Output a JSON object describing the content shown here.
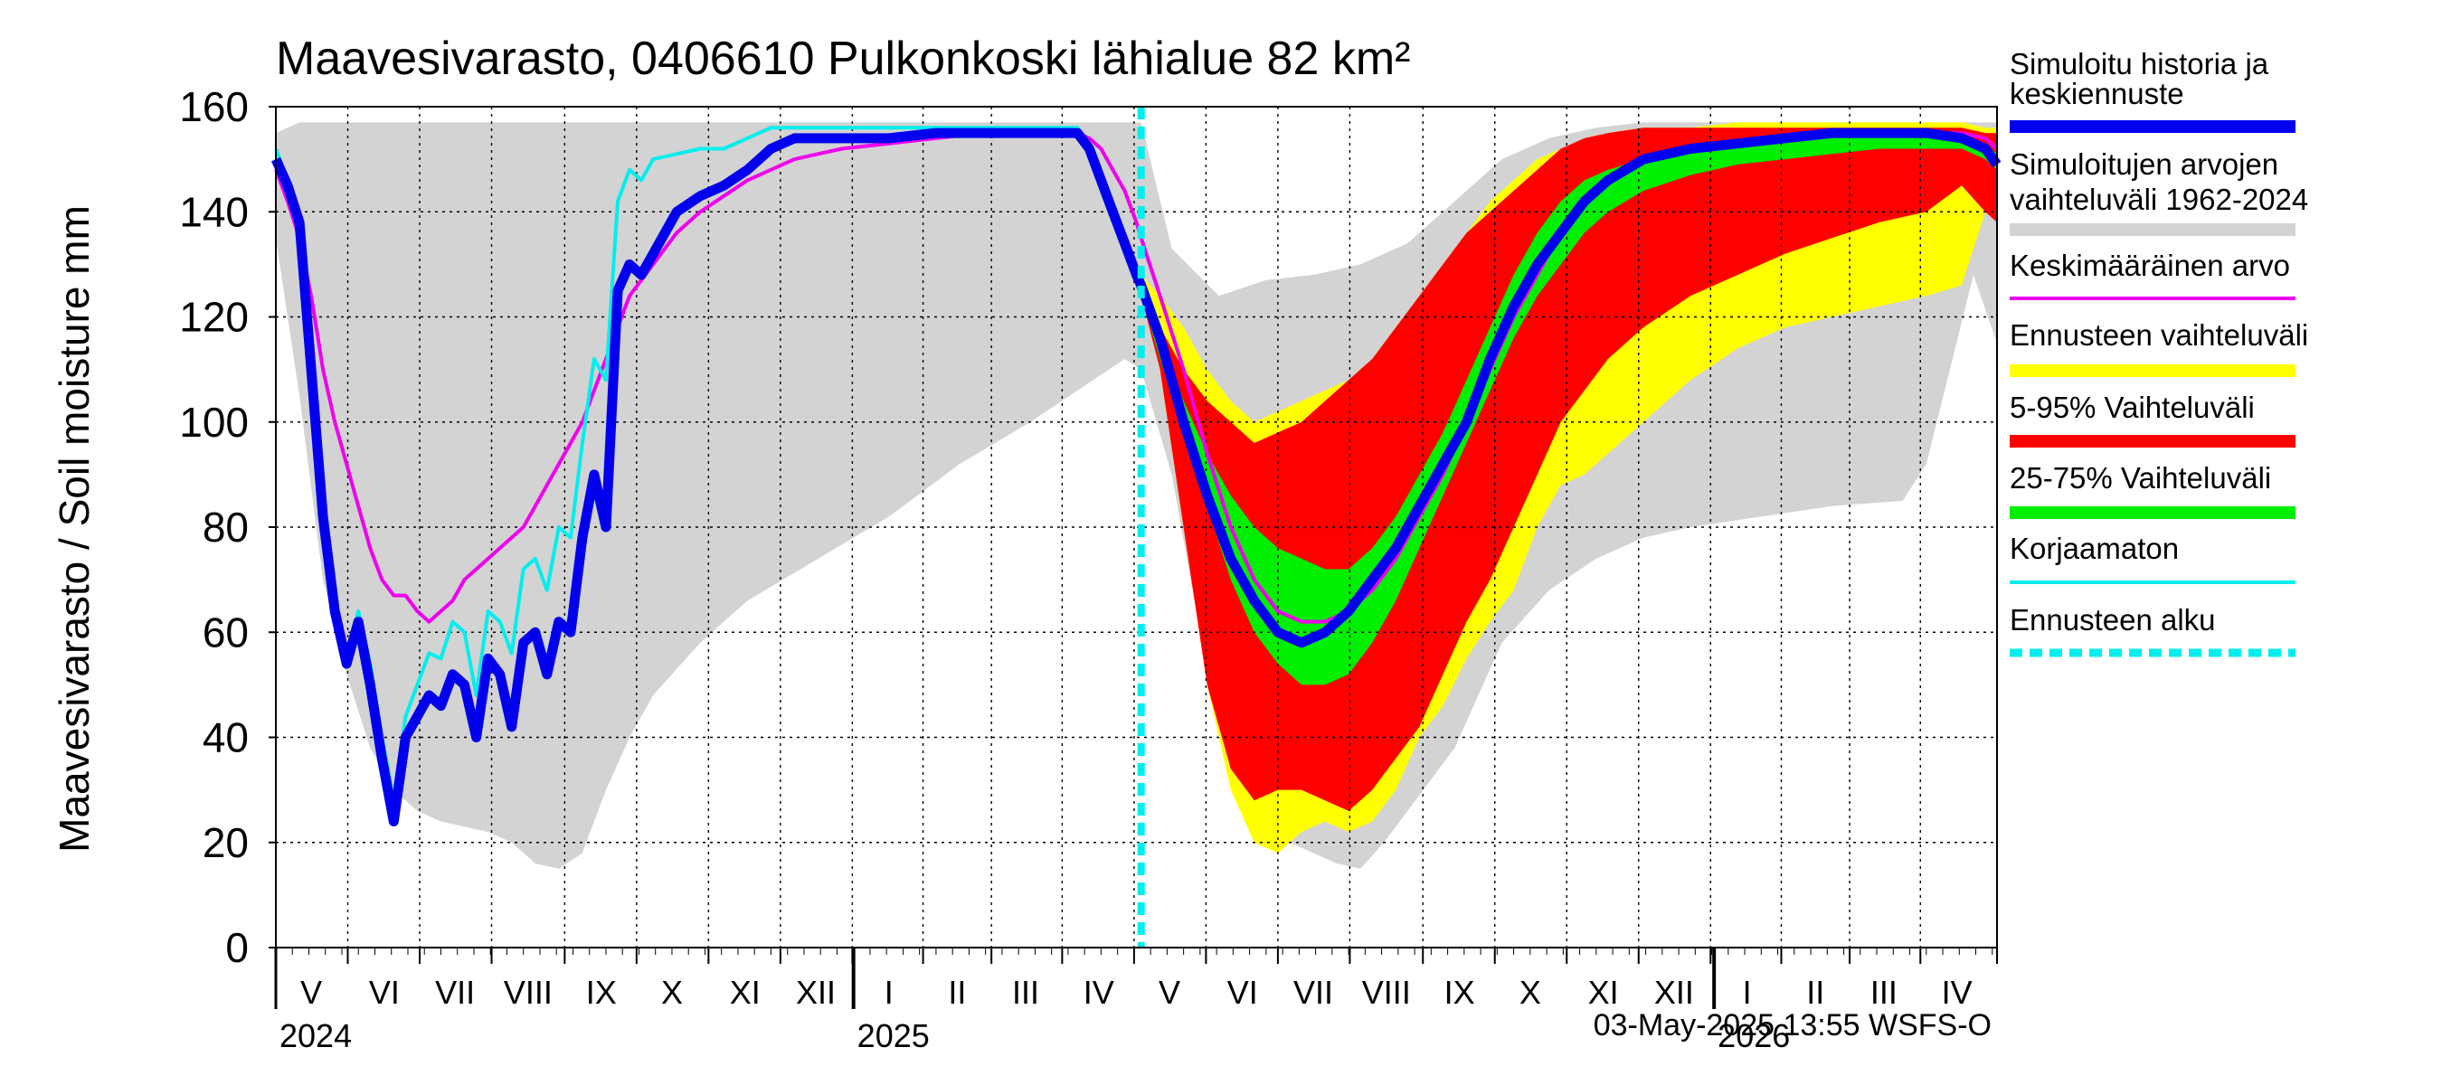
{
  "chart_data": {
    "type": "area",
    "title": "Maavesivarasto, 0406610 Pulkonkoski lähialue 82 km²",
    "ylabel": "Maavesivarasto / Soil moisture   mm",
    "ylim": [
      0,
      160
    ],
    "yticks": [
      "0",
      "20",
      "40",
      "60",
      "80",
      "100",
      "120",
      "140",
      "160"
    ],
    "xlim_days": [
      0,
      730
    ],
    "month_labels": [
      {
        "label": "V",
        "day": 15
      },
      {
        "label": "VI",
        "day": 46
      },
      {
        "label": "VII",
        "day": 76
      },
      {
        "label": "VIII",
        "day": 107
      },
      {
        "label": "IX",
        "day": 138
      },
      {
        "label": "X",
        "day": 168
      },
      {
        "label": "XI",
        "day": 199
      },
      {
        "label": "XII",
        "day": 229
      },
      {
        "label": "I",
        "day": 260
      },
      {
        "label": "II",
        "day": 289
      },
      {
        "label": "III",
        "day": 318
      },
      {
        "label": "IV",
        "day": 349
      },
      {
        "label": "V",
        "day": 379
      },
      {
        "label": "VI",
        "day": 410
      },
      {
        "label": "VII",
        "day": 440
      },
      {
        "label": "VIII",
        "day": 471
      },
      {
        "label": "IX",
        "day": 502
      },
      {
        "label": "X",
        "day": 532
      },
      {
        "label": "XI",
        "day": 563
      },
      {
        "label": "XII",
        "day": 593
      },
      {
        "label": "I",
        "day": 624
      },
      {
        "label": "II",
        "day": 653
      },
      {
        "label": "III",
        "day": 682
      },
      {
        "label": "IV",
        "day": 713
      }
    ],
    "year_labels": [
      {
        "label": "2024",
        "day": 0
      },
      {
        "label": "2025",
        "day": 245
      },
      {
        "label": "2026",
        "day": 610
      }
    ],
    "year_boundaries_days": [
      245,
      610
    ],
    "forecast_start_day": 367,
    "legend": [
      {
        "label": "Simuloitu historia ja keskiennuste",
        "color": "#0000ee",
        "style": "thick"
      },
      {
        "label": "Simuloitujen arvojen vaihteluväli 1962-2024",
        "color": "#cccccc",
        "style": "thick"
      },
      {
        "label": "Keskimääräinen arvo",
        "color": "#ee00ee",
        "style": "line"
      },
      {
        "label": "Ennusteen vaihteluväli",
        "color": "#ffff00",
        "style": "thick"
      },
      {
        "label": "5-95% Vaihteluväli",
        "color": "#ff0000",
        "style": "thick"
      },
      {
        "label": "25-75% Vaihteluväli",
        "color": "#00ee00",
        "style": "thick"
      },
      {
        "label": "Korjaamaton",
        "color": "#00eeee",
        "style": "line"
      },
      {
        "label": "Ennusteen alku",
        "color": "#00eeee",
        "style": "dashed"
      }
    ],
    "series": [
      {
        "name": "Simuloitujen arvojen vaihteluväli 1962-2024 (max)",
        "color": "#cccccc",
        "x": [
          0,
          10,
          20,
          40,
          60,
          80,
          100,
          110,
          130,
          150,
          170,
          200,
          230,
          260,
          290,
          320,
          345,
          360,
          367,
          380,
          400,
          420,
          440,
          460,
          480,
          500,
          520,
          540,
          560,
          580,
          600,
          630,
          660,
          690,
          720,
          730
        ],
        "values": [
          155,
          157,
          157,
          157,
          157,
          157,
          157,
          157,
          157,
          157,
          157,
          157,
          157,
          157,
          157,
          157,
          157,
          157,
          157,
          133,
          124,
          127,
          128,
          130,
          134,
          142,
          150,
          154,
          156,
          157,
          157,
          157,
          157,
          157,
          157,
          157
        ]
      },
      {
        "name": "Simuloitujen arvojen vaihteluväli 1962-2024 (min)",
        "color": "#cccccc",
        "x": [
          0,
          10,
          20,
          30,
          40,
          50,
          60,
          70,
          80,
          90,
          100,
          110,
          120,
          130,
          140,
          150,
          160,
          180,
          200,
          230,
          260,
          290,
          320,
          340,
          360,
          367,
          380,
          390,
          400,
          410,
          420,
          440,
          450,
          460,
          470,
          480,
          490,
          500,
          510,
          520,
          540,
          560,
          580,
          600,
          630,
          660,
          690,
          700,
          710,
          720,
          730
        ],
        "values": [
          135,
          105,
          70,
          52,
          38,
          30,
          26,
          24,
          23,
          22,
          20,
          16,
          15,
          18,
          30,
          40,
          48,
          58,
          66,
          74,
          82,
          92,
          100,
          106,
          112,
          110,
          90,
          65,
          45,
          30,
          22,
          18,
          16,
          15,
          20,
          26,
          32,
          38,
          48,
          58,
          68,
          74,
          78,
          80,
          82,
          84,
          85,
          92,
          110,
          128,
          115
        ]
      },
      {
        "name": "Ennusteen vaihteluväli (max)",
        "color": "#ffff00",
        "x": [
          367,
          375,
          385,
          395,
          405,
          415,
          425,
          435,
          445,
          455,
          465,
          475,
          485,
          495,
          505,
          515,
          525,
          535,
          545,
          555,
          565,
          580,
          600,
          620,
          640,
          660,
          680,
          700,
          715,
          725,
          730
        ],
        "values": [
          128,
          124,
          118,
          110,
          104,
          100,
          102,
          104,
          106,
          108,
          112,
          118,
          124,
          130,
          136,
          142,
          146,
          150,
          152,
          154,
          155,
          156,
          156,
          157,
          157,
          157,
          157,
          157,
          157,
          156,
          156
        ]
      },
      {
        "name": "Ennusteen vaihteluväli (min)",
        "color": "#ffff00",
        "x": [
          367,
          375,
          385,
          395,
          405,
          415,
          425,
          435,
          445,
          455,
          465,
          475,
          485,
          495,
          505,
          515,
          525,
          535,
          545,
          555,
          565,
          580,
          600,
          620,
          640,
          660,
          680,
          700,
          715,
          725,
          730
        ],
        "values": [
          126,
          110,
          80,
          50,
          30,
          20,
          18,
          22,
          24,
          22,
          24,
          30,
          40,
          46,
          55,
          62,
          68,
          80,
          88,
          90,
          94,
          100,
          108,
          114,
          118,
          120,
          122,
          124,
          126,
          140,
          138
        ]
      },
      {
        "name": "5-95% Vaihteluväli (max)",
        "color": "#ff0000",
        "x": [
          367,
          375,
          385,
          395,
          405,
          415,
          425,
          435,
          445,
          455,
          465,
          475,
          485,
          495,
          505,
          515,
          525,
          535,
          545,
          555,
          565,
          580,
          600,
          620,
          640,
          660,
          680,
          700,
          715,
          725,
          730
        ],
        "values": [
          127,
          118,
          110,
          104,
          100,
          96,
          98,
          100,
          104,
          108,
          112,
          118,
          124,
          130,
          136,
          140,
          144,
          148,
          152,
          154,
          155,
          156,
          156,
          156,
          156,
          156,
          156,
          156,
          156,
          155,
          155
        ]
      },
      {
        "name": "5-95% Vaihteluväli (min)",
        "color": "#ff0000",
        "x": [
          367,
          375,
          385,
          395,
          405,
          415,
          425,
          435,
          445,
          455,
          465,
          475,
          485,
          495,
          505,
          515,
          525,
          535,
          545,
          555,
          565,
          580,
          600,
          620,
          640,
          660,
          680,
          700,
          715,
          725,
          730
        ],
        "values": [
          124,
          110,
          80,
          50,
          34,
          28,
          30,
          30,
          28,
          26,
          30,
          36,
          42,
          52,
          62,
          70,
          80,
          90,
          100,
          106,
          112,
          118,
          124,
          128,
          132,
          135,
          138,
          140,
          145,
          140,
          138
        ]
      },
      {
        "name": "25-75% Vaihteluväli (max)",
        "color": "#00ee00",
        "x": [
          367,
          375,
          385,
          395,
          405,
          415,
          425,
          435,
          445,
          455,
          465,
          475,
          485,
          495,
          505,
          515,
          525,
          535,
          545,
          555,
          565,
          580,
          600,
          620,
          640,
          660,
          680,
          700,
          715,
          725,
          730
        ],
        "values": [
          126,
          116,
          104,
          94,
          86,
          80,
          76,
          74,
          72,
          72,
          76,
          82,
          90,
          98,
          108,
          118,
          128,
          136,
          142,
          146,
          148,
          150,
          152,
          153,
          154,
          155,
          155,
          155,
          155,
          153,
          151
        ]
      },
      {
        "name": "25-75% Vaihteluväli (min)",
        "color": "#00ee00",
        "x": [
          367,
          375,
          385,
          395,
          405,
          415,
          425,
          435,
          445,
          455,
          465,
          475,
          485,
          495,
          505,
          515,
          525,
          535,
          545,
          555,
          565,
          580,
          600,
          620,
          640,
          660,
          680,
          700,
          715,
          725,
          730
        ],
        "values": [
          124,
          112,
          98,
          84,
          70,
          60,
          54,
          50,
          50,
          52,
          58,
          66,
          76,
          86,
          96,
          106,
          116,
          124,
          130,
          136,
          140,
          144,
          147,
          149,
          150,
          151,
          152,
          152,
          152,
          150,
          148
        ]
      },
      {
        "name": "Simuloitu historia ja keskiennuste",
        "color": "#0000ee",
        "x": [
          0,
          5,
          10,
          15,
          20,
          25,
          30,
          35,
          40,
          45,
          50,
          55,
          60,
          65,
          70,
          75,
          80,
          85,
          90,
          95,
          100,
          105,
          110,
          115,
          120,
          125,
          130,
          135,
          140,
          145,
          150,
          155,
          160,
          170,
          180,
          190,
          200,
          210,
          220,
          230,
          240,
          250,
          260,
          280,
          300,
          320,
          330,
          340,
          345,
          350,
          355,
          360,
          365,
          367,
          375,
          385,
          395,
          405,
          415,
          425,
          435,
          445,
          455,
          465,
          475,
          485,
          495,
          505,
          515,
          525,
          535,
          545,
          555,
          565,
          580,
          600,
          620,
          640,
          660,
          680,
          700,
          715,
          725,
          730
        ],
        "values": [
          150,
          145,
          138,
          110,
          82,
          64,
          54,
          62,
          50,
          36,
          24,
          40,
          44,
          48,
          46,
          52,
          50,
          40,
          55,
          52,
          42,
          58,
          60,
          52,
          62,
          60,
          78,
          90,
          80,
          125,
          130,
          128,
          132,
          140,
          143,
          145,
          148,
          152,
          154,
          154,
          154,
          154,
          154,
          155,
          155,
          155,
          155,
          155,
          152,
          146,
          140,
          134,
          128,
          126,
          116,
          100,
          86,
          74,
          66,
          60,
          58,
          60,
          64,
          70,
          76,
          84,
          92,
          100,
          112,
          122,
          130,
          136,
          142,
          146,
          150,
          152,
          153,
          154,
          155,
          155,
          155,
          154,
          152,
          149
        ]
      },
      {
        "name": "Keskimääräinen arvo",
        "color": "#ee00ee",
        "x": [
          0,
          5,
          10,
          15,
          20,
          25,
          30,
          35,
          40,
          45,
          50,
          55,
          60,
          65,
          70,
          75,
          80,
          85,
          90,
          95,
          100,
          105,
          110,
          115,
          120,
          125,
          130,
          135,
          140,
          145,
          150,
          160,
          170,
          180,
          200,
          220,
          240,
          260,
          280,
          300,
          320,
          330,
          340,
          345,
          350,
          355,
          360,
          365,
          367,
          375,
          385,
          395,
          405,
          415,
          425,
          435,
          445,
          455,
          465,
          475,
          485,
          495,
          505,
          515,
          525,
          535,
          545,
          555,
          565,
          580,
          600,
          620,
          640,
          660,
          680,
          700,
          715,
          725,
          730
        ],
        "values": [
          148,
          142,
          135,
          124,
          110,
          100,
          92,
          84,
          76,
          70,
          67,
          67,
          64,
          62,
          64,
          66,
          70,
          72,
          74,
          76,
          78,
          80,
          84,
          88,
          92,
          96,
          100,
          106,
          112,
          118,
          124,
          130,
          136,
          140,
          146,
          150,
          152,
          153,
          154,
          155,
          155,
          155,
          155,
          154,
          152,
          148,
          144,
          138,
          135,
          124,
          110,
          94,
          80,
          70,
          64,
          62,
          62,
          64,
          68,
          74,
          82,
          90,
          100,
          110,
          120,
          128,
          136,
          142,
          146,
          150,
          152,
          153,
          154,
          155,
          155,
          155,
          155,
          154,
          152
        ]
      },
      {
        "name": "Korjaamaton",
        "color": "#00eeee",
        "x": [
          0,
          5,
          10,
          15,
          20,
          25,
          30,
          35,
          40,
          45,
          50,
          55,
          60,
          65,
          70,
          75,
          80,
          85,
          90,
          95,
          100,
          105,
          110,
          115,
          120,
          125,
          130,
          135,
          140,
          145,
          150,
          155,
          160,
          170,
          180,
          190,
          200,
          210,
          220,
          240,
          260,
          280,
          300,
          320,
          330,
          340,
          345,
          350,
          355,
          360,
          365,
          367
        ],
        "values": [
          152,
          146,
          140,
          112,
          84,
          66,
          56,
          64,
          54,
          40,
          28,
          44,
          50,
          56,
          55,
          62,
          60,
          48,
          64,
          62,
          56,
          72,
          74,
          68,
          80,
          78,
          96,
          112,
          108,
          142,
          148,
          146,
          150,
          151,
          152,
          152,
          154,
          156,
          156,
          156,
          156,
          156,
          156,
          156,
          156,
          156,
          153,
          147,
          141,
          135,
          128,
          126
        ]
      }
    ]
  }
}
